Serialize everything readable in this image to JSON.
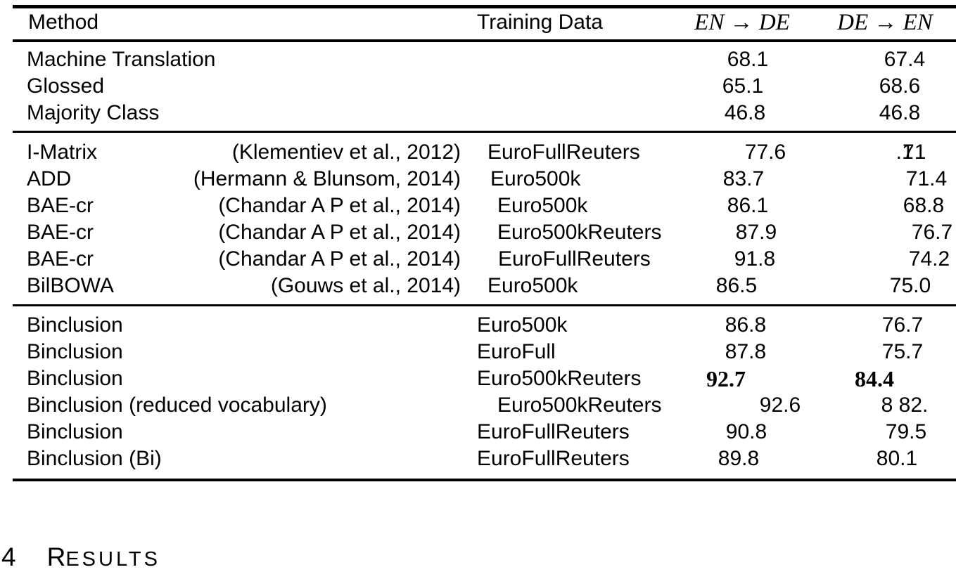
{
  "table": {
    "header": {
      "method": "Method",
      "training_data": "Training Data",
      "en_de": "EN → DE",
      "de_en": "DE → EN"
    },
    "sections": [
      {
        "rows": [
          {
            "method": "Machine Translation",
            "citation": "",
            "training_data": "",
            "en_de": "68.1",
            "de_en": "67.4"
          },
          {
            "method": "Glossed",
            "citation": "",
            "training_data": "",
            "en_de": "65.1",
            "de_en": "68.6"
          },
          {
            "method": "Majority Class",
            "citation": "",
            "training_data": "",
            "en_de": "46.8",
            "de_en": "46.8"
          }
        ]
      },
      {
        "rows": [
          {
            "method": "I-Matrix",
            "citation": "(Klementiev et al., 2012)",
            "training_data": "EuroFullReuters",
            "en_de": "77.6",
            "de_en": ".171",
            "overlap_glyphs": true
          },
          {
            "method": "ADD",
            "citation": "(Hermann & Blunsom, 2014)",
            "training_data": "Euro500k",
            "en_de": "83.7",
            "de_en": "71.4"
          },
          {
            "method": "BAE-cr",
            "citation": "(Chandar A P et al., 2014)",
            "training_data": "Euro500k",
            "en_de": "86.1",
            "de_en": "68.8"
          },
          {
            "method": "BAE-cr",
            "citation": "(Chandar A P et al., 2014)",
            "training_data": "Euro500kReuters",
            "en_de": "87.9",
            "de_en": "76.7"
          },
          {
            "method": "BAE-cr",
            "citation": "(Chandar A P et al., 2014)",
            "training_data": "EuroFullReuters",
            "en_de": "91.8",
            "de_en": "74.2"
          },
          {
            "method": "BilBOWA",
            "citation": "(Gouws et al., 2014)",
            "training_data": "Euro500k",
            "en_de": "86.5",
            "de_en": "75.0"
          }
        ]
      },
      {
        "rows": [
          {
            "method": "Binclusion",
            "citation": "",
            "training_data": "Euro500k",
            "en_de": "86.8",
            "de_en": "76.7"
          },
          {
            "method": "Binclusion",
            "citation": "",
            "training_data": "EuroFull",
            "en_de": "87.8",
            "de_en": "75.7"
          },
          {
            "method": "Binclusion",
            "citation": "",
            "training_data": "Euro500kReuters",
            "en_de": "92.7",
            "de_en": "84.4",
            "bold": true
          },
          {
            "method": "Binclusion (reduced vocabulary)",
            "citation": "",
            "training_data": "Euro500kReuters",
            "en_de": "92.6",
            "de_en": "8 82."
          },
          {
            "method": "Binclusion",
            "citation": "",
            "training_data": "EuroFullReuters",
            "en_de": "90.8",
            "de_en": "79.5"
          },
          {
            "method": "Binclusion (Bi)",
            "citation": "",
            "training_data": "EuroFullReuters",
            "en_de": "89.8",
            "de_en": "80.1"
          }
        ]
      }
    ]
  },
  "section_heading": {
    "number": "4",
    "title": "Results"
  }
}
